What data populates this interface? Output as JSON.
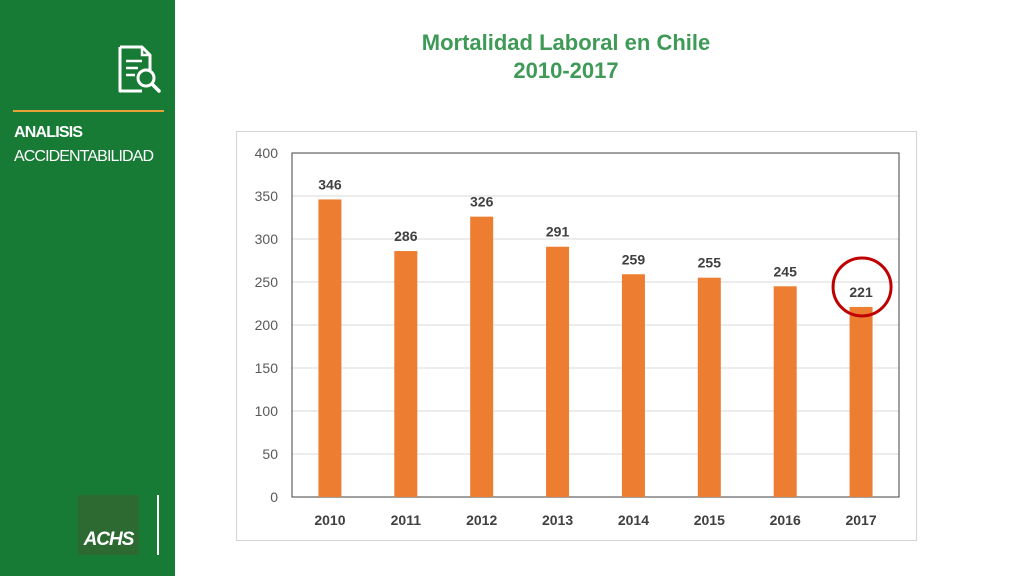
{
  "sidebar": {
    "section_title": "ANALISIS",
    "section_subtitle": "ACCIDENTABILIDAD",
    "logo_text": "ACHS",
    "icon": "document-search-icon",
    "colors": {
      "background": "#177a35",
      "divider": "#e9a13a",
      "logo_bg": "#2c6a31"
    }
  },
  "chart_data": {
    "type": "bar",
    "title": "Mortalidad Laboral en Chile",
    "subtitle": "2010-2017",
    "xlabel": "",
    "ylabel": "",
    "categories": [
      "2010",
      "2011",
      "2012",
      "2013",
      "2014",
      "2015",
      "2016",
      "2017"
    ],
    "values": [
      346,
      286,
      326,
      291,
      259,
      255,
      245,
      221
    ],
    "ylim": [
      0,
      400
    ],
    "yticks": [
      0,
      50,
      100,
      150,
      200,
      250,
      300,
      350,
      400
    ],
    "grid": true,
    "legend": "none",
    "bar_color": "#ed7d31",
    "highlight": {
      "category": "2017",
      "shape": "circle",
      "color": "#c00000"
    }
  }
}
